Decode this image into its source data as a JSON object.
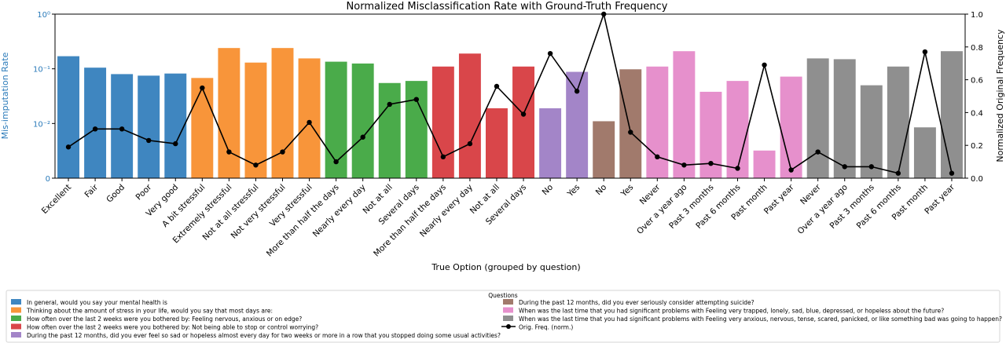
{
  "chart_data": {
    "type": "bar",
    "title": "Normalized Misclassification Rate with Ground-Truth Frequency",
    "xlabel": "True Option (grouped by question)",
    "ylabel": "Mis-imputation Rate",
    "y2label": "Normalized Original Frequency",
    "yscale": "log",
    "ylim": [
      0.001,
      1
    ],
    "y_ticks": [
      {
        "value": 1,
        "label": "10⁰"
      },
      {
        "value": 0.1,
        "label": "10⁻¹"
      },
      {
        "value": 0.01,
        "label": "10⁻²"
      },
      {
        "value": 0.001,
        "label": "0"
      }
    ],
    "y2lim": [
      0,
      1
    ],
    "y2_ticks": [
      "0.0",
      "0.2",
      "0.4",
      "0.6",
      "0.8",
      "1.0"
    ],
    "grid": false,
    "legend_title": "Questions",
    "legend_placement": "bottom",
    "categories": [
      "Excellent",
      "Fair",
      "Good",
      "Poor",
      "Very good",
      "A bit stressful",
      "Extremely stressful",
      "Not at all stressful",
      "Not very stressful",
      "Very stressful",
      "More than half the days",
      "Nearly every day",
      "Not at all",
      "Several days",
      "More than half the days",
      "Nearly every day",
      "Not at all",
      "Several days",
      "No",
      "Yes",
      "No",
      "Yes",
      "Never",
      "Over a year ago",
      "Past 3 months",
      "Past 6 months",
      "Past month",
      "Past year",
      "Never",
      "Over a year ago",
      "Past 3 months",
      "Past 6 months",
      "Past month",
      "Past year"
    ],
    "groups": [
      1,
      1,
      1,
      1,
      1,
      2,
      2,
      2,
      2,
      2,
      3,
      3,
      3,
      3,
      4,
      4,
      4,
      4,
      5,
      5,
      6,
      6,
      7,
      7,
      7,
      7,
      7,
      7,
      8,
      8,
      8,
      8,
      8,
      8
    ],
    "values": [
      0.17,
      0.105,
      0.08,
      0.075,
      0.082,
      0.068,
      0.24,
      0.13,
      0.24,
      0.155,
      0.135,
      0.125,
      0.055,
      0.06,
      0.11,
      0.19,
      0.019,
      0.11,
      0.019,
      0.088,
      0.011,
      0.098,
      0.11,
      0.21,
      0.038,
      0.06,
      0.0032,
      0.072,
      0.155,
      0.15,
      0.05,
      0.11,
      0.0085,
      0.21
    ],
    "line_series": {
      "name": "Orig. Freq. (norm.)",
      "axis": "right",
      "values": [
        0.19,
        0.3,
        0.3,
        0.23,
        0.21,
        0.55,
        0.16,
        0.08,
        0.16,
        0.34,
        0.1,
        0.25,
        0.45,
        0.48,
        0.13,
        0.21,
        0.56,
        0.39,
        0.76,
        0.53,
        1.0,
        0.28,
        0.13,
        0.08,
        0.09,
        0.06,
        0.69,
        0.05,
        0.16,
        0.07,
        0.07,
        0.03,
        0.77,
        0.03
      ]
    },
    "legend": [
      {
        "label": "In general, would you say your mental health is",
        "color": "#3f86c0"
      },
      {
        "label": "Thinking about the amount of stress in your life, would you say that most days are:",
        "color": "#f8953a"
      },
      {
        "label": "How often over the last 2 weeks were you bothered by: Feeling nervous, anxious or on edge?",
        "color": "#4aab4a"
      },
      {
        "label": "How often over the last 2 weeks were you bothered by: Not being able to stop or control worrying?",
        "color": "#d9464a"
      },
      {
        "label": "During the past 12 months, did you ever feel so sad or hopeless almost every day for two weeks or more in a row that you stopped doing some usual activities?",
        "color": "#a385c8"
      },
      {
        "label": "During the past 12 months, did you ever seriously consider attempting suicide?",
        "color": "#a17a6c"
      },
      {
        "label": "When was the last time that you had significant problems with Feeling very trapped, lonely, sad, blue, depressed, or hopeless about the future?",
        "color": "#e690cc"
      },
      {
        "label": "When was the last time that you had significant problems with Feeling very anxious, nervous, tense, scared, panicked, or like something bad was going to happen?",
        "color": "#8f8f8f"
      }
    ]
  }
}
